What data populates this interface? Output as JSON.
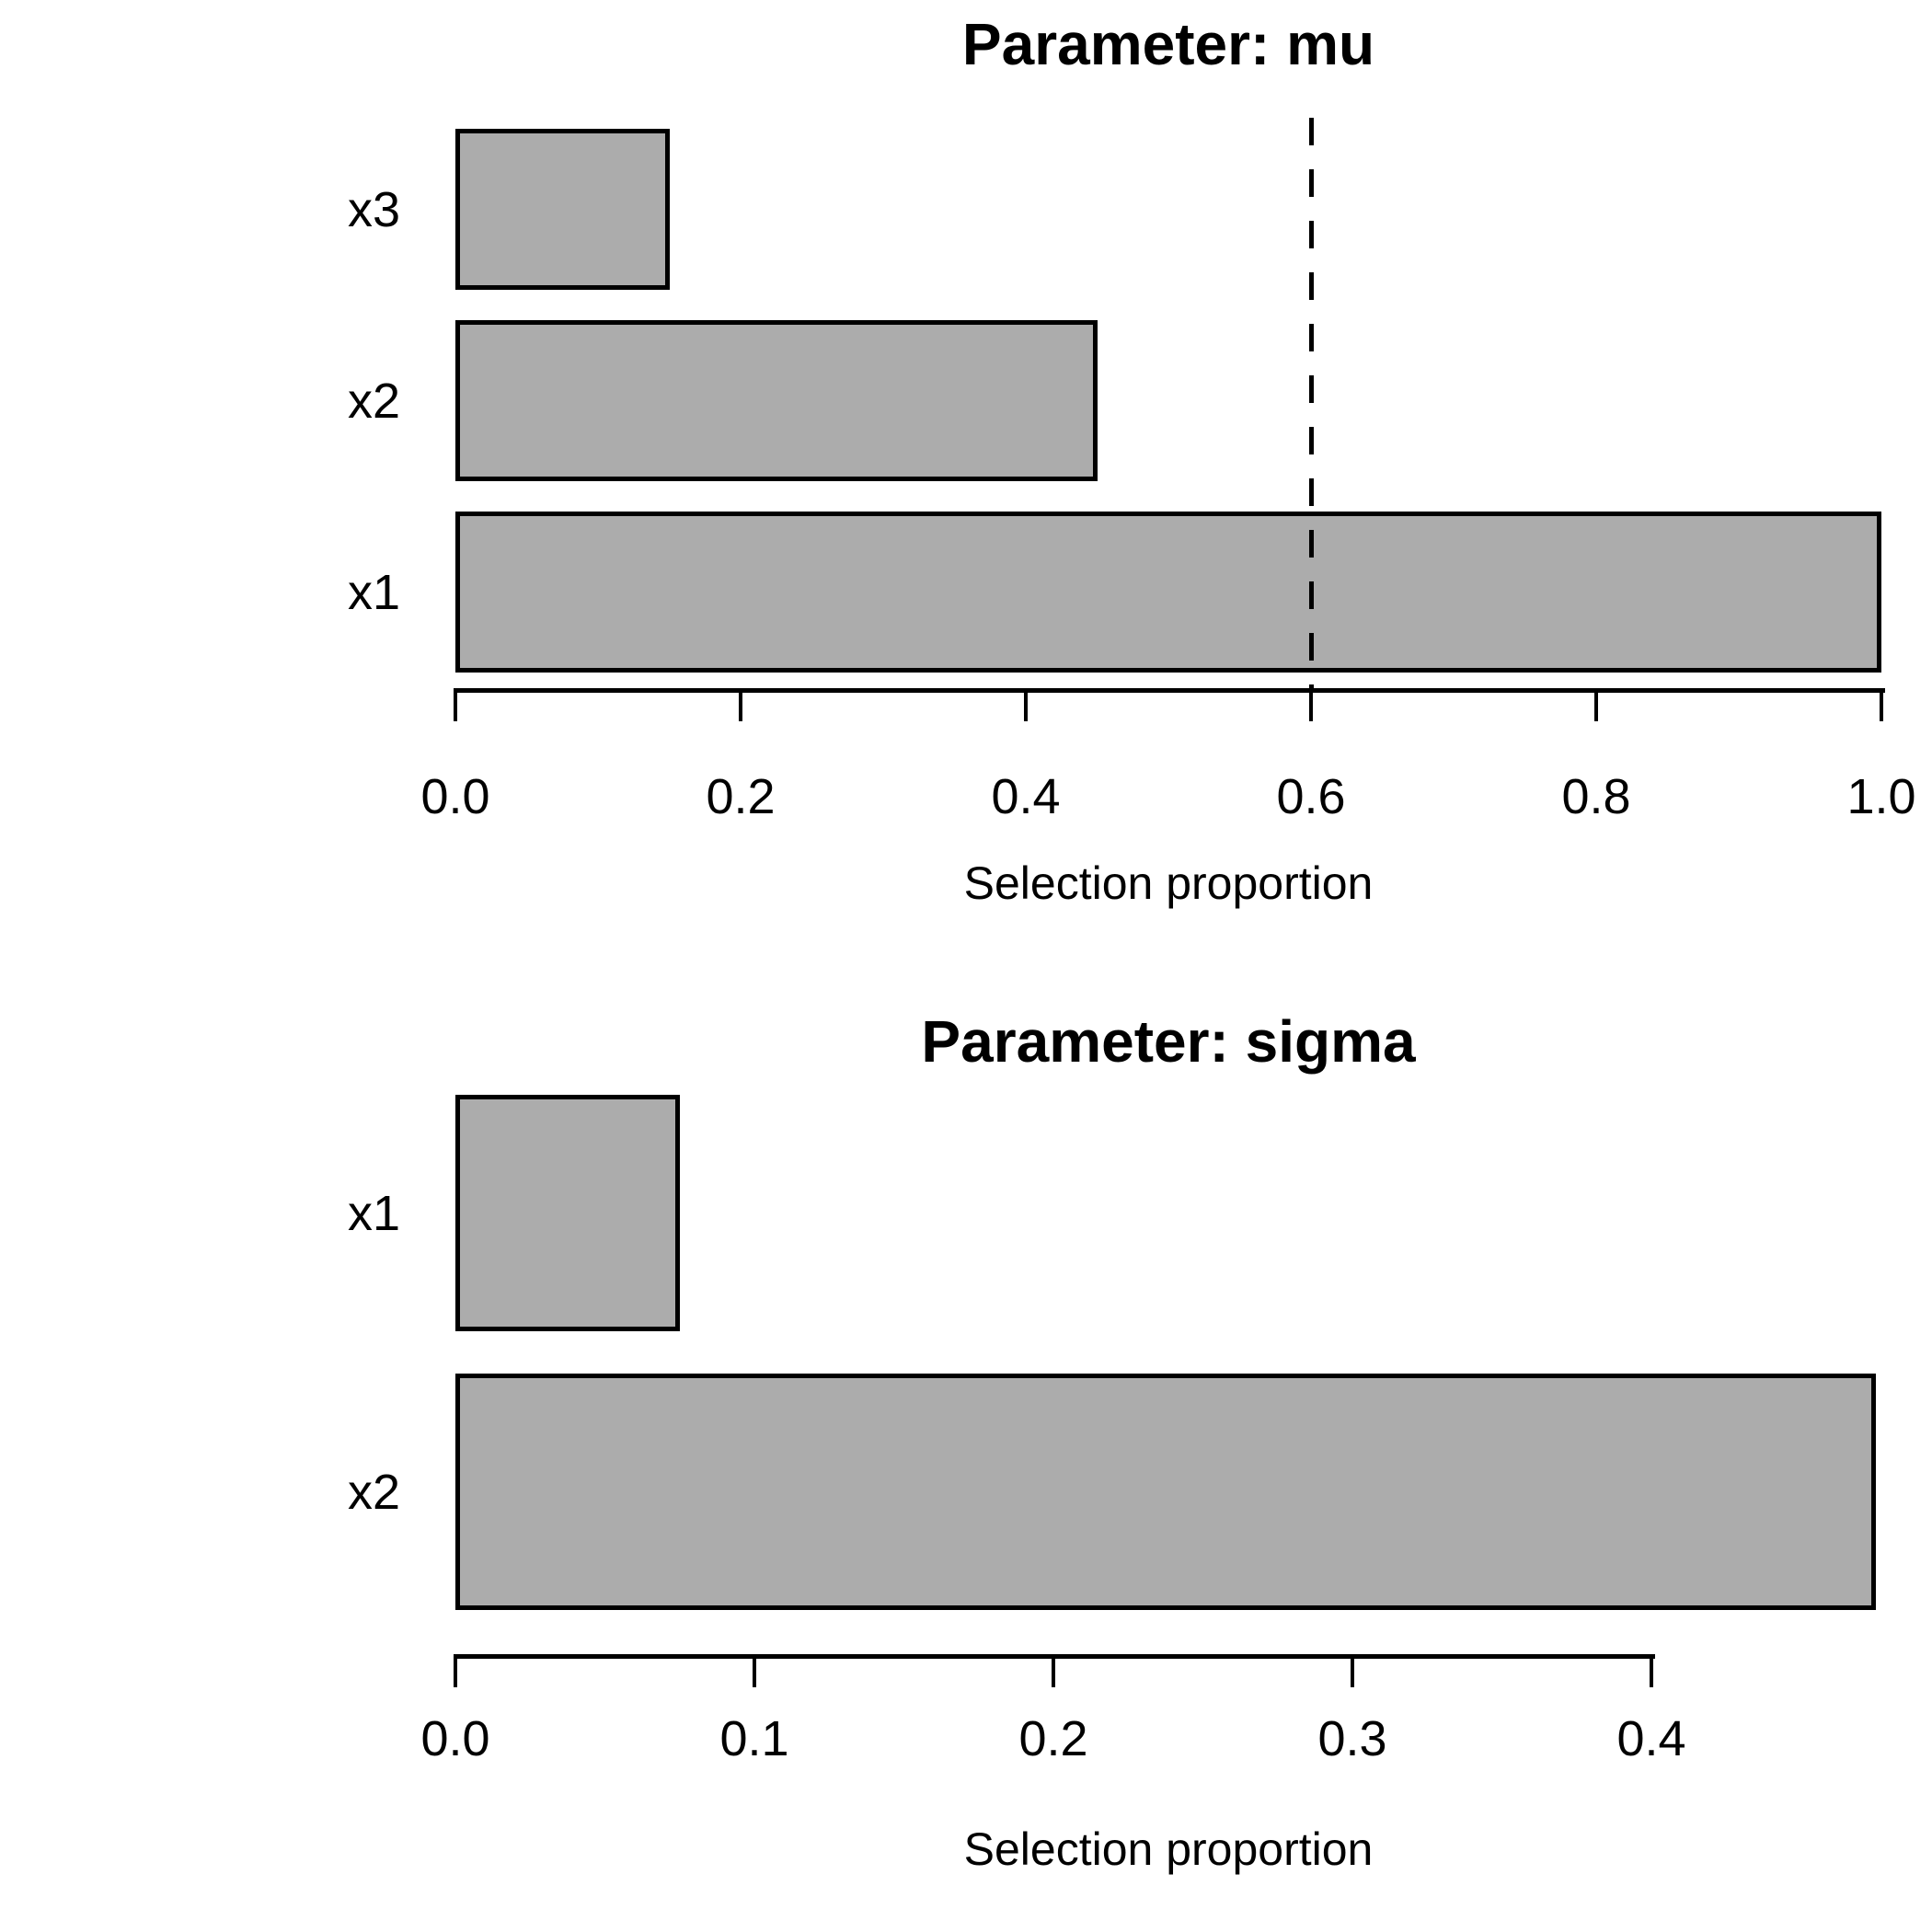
{
  "figure": {
    "background": "#FFFFFF",
    "bar_fill": "#ACACAC",
    "bar_border": "#000000",
    "text_color": "#000000"
  },
  "chart_data": [
    {
      "type": "bar",
      "orientation": "horizontal",
      "title": "Parameter: mu",
      "xlabel": "Selection proportion",
      "categories": [
        "x3",
        "x2",
        "x1"
      ],
      "values": [
        0.15,
        0.45,
        1.0
      ],
      "xtick_labels": [
        "0.0",
        "0.2",
        "0.4",
        "0.6",
        "0.8",
        "1.0"
      ],
      "xtick_values": [
        0,
        0.2,
        0.4,
        0.6,
        0.8,
        1.0
      ],
      "xlim": [
        0,
        1.0
      ],
      "grid": false,
      "reference_line": {
        "value": 0.6,
        "style": "dashed",
        "color": "#000000"
      }
    },
    {
      "type": "bar",
      "orientation": "horizontal",
      "title": "Parameter: sigma",
      "xlabel": "Selection proportion",
      "categories": [
        "x1",
        "x2"
      ],
      "values": [
        0.075,
        0.475
      ],
      "xtick_labels": [
        "0.0",
        "0.1",
        "0.2",
        "0.3",
        "0.4"
      ],
      "xtick_values": [
        0,
        0.1,
        0.2,
        0.3,
        0.4
      ],
      "xlim": [
        0,
        0.475
      ],
      "grid": false,
      "reference_line": null
    }
  ]
}
